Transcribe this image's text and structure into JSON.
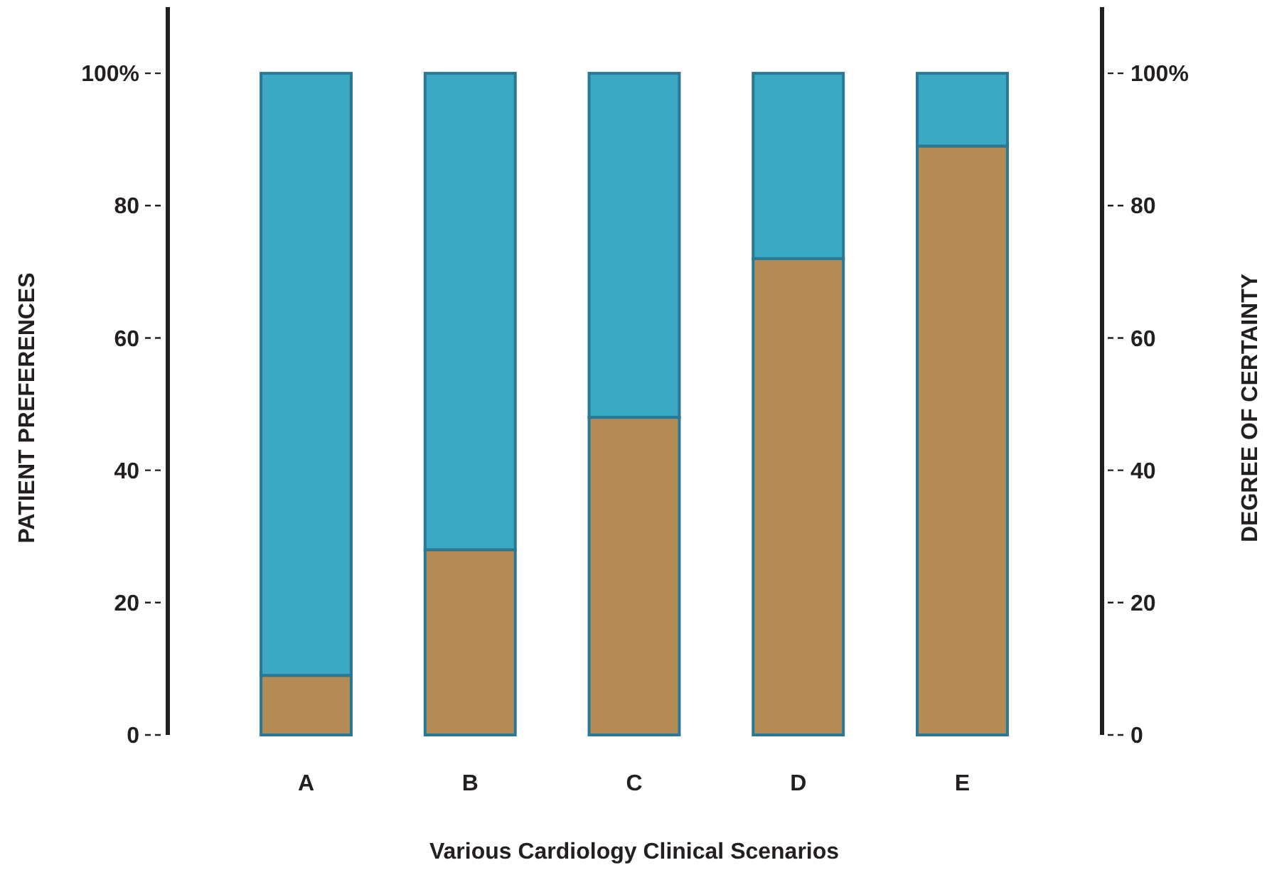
{
  "chart_data": {
    "type": "bar",
    "stacked": true,
    "xlabel": "Various Cardiology Clinical Scenarios",
    "ylabel": "PATIENT PREFERENCES",
    "y2label": "DEGREE OF CERTAINTY",
    "categories": [
      "A",
      "B",
      "C",
      "D",
      "E"
    ],
    "series": [
      {
        "color": "#b48a55",
        "values": [
          9,
          28,
          48,
          72,
          89
        ]
      },
      {
        "color": "#3ba9c4",
        "values": [
          91,
          72,
          52,
          28,
          11
        ]
      }
    ],
    "ylim": [
      0,
      110
    ],
    "yticks": [
      0,
      20,
      40,
      60,
      80,
      {
        "value": 100,
        "label": "100%"
      }
    ],
    "y2lim": [
      0,
      110
    ],
    "y2ticks": [
      0,
      20,
      40,
      60,
      80,
      {
        "value": 100,
        "label": "100%"
      }
    ],
    "grid": false
  }
}
